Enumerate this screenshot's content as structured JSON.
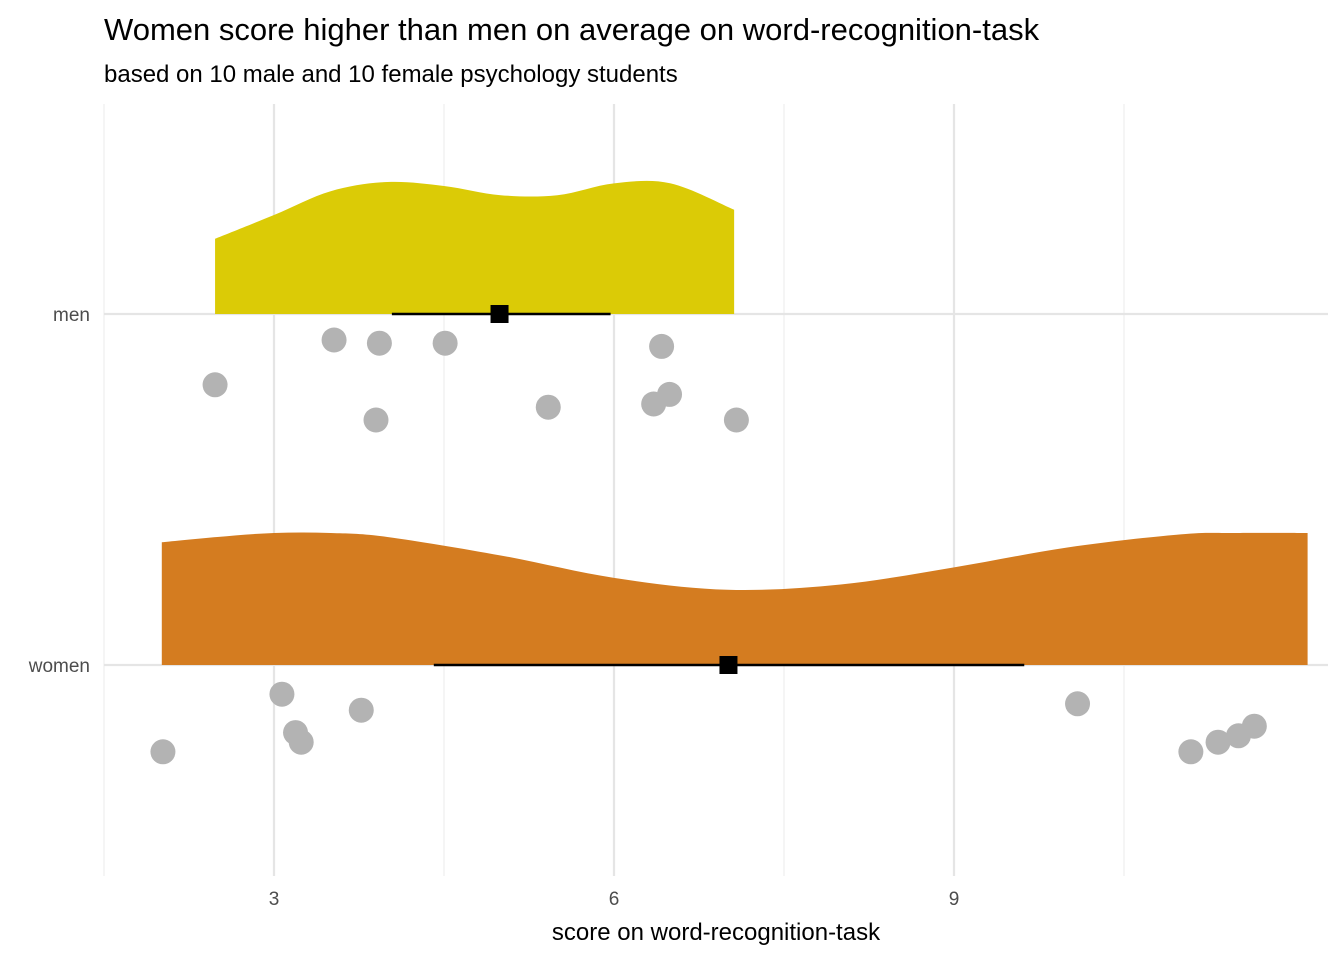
{
  "chart_data": {
    "type": "raincloud",
    "title": "Women score higher than men on average on word-recognition-task",
    "subtitle": "based on 10 male and 10 female psychology students",
    "xlabel": "score on word-recognition-task",
    "ylabel": "",
    "xlim": [
      1.5,
      12.3
    ],
    "x_ticks": [
      3,
      6,
      9
    ],
    "x_tick_labels": [
      "3",
      "6",
      "9"
    ],
    "categories": [
      "men",
      "women"
    ],
    "grid": true,
    "series": [
      {
        "name": "men",
        "color": "#dbcb06",
        "mean": 4.99,
        "interval": [
          4.04,
          5.97
        ],
        "density": {
          "x": [
            2.48,
            3.0,
            3.5,
            4.0,
            4.5,
            5.0,
            5.5,
            6.0,
            6.5,
            7.06
          ],
          "y": [
            0.57,
            0.75,
            0.93,
            1.0,
            0.97,
            0.9,
            0.9,
            0.99,
            0.99,
            0.79
          ]
        },
        "points": [
          {
            "x": 2.48,
            "jitter": 0.19
          },
          {
            "x": 3.53,
            "jitter": 0.05
          },
          {
            "x": 3.9,
            "jitter": 0.3
          },
          {
            "x": 3.93,
            "jitter": 0.06
          },
          {
            "x": 4.51,
            "jitter": 0.06
          },
          {
            "x": 5.42,
            "jitter": 0.26
          },
          {
            "x": 6.35,
            "jitter": 0.25
          },
          {
            "x": 6.42,
            "jitter": 0.07
          },
          {
            "x": 6.49,
            "jitter": 0.22
          },
          {
            "x": 7.08,
            "jitter": 0.3
          }
        ]
      },
      {
        "name": "women",
        "color": "#d47c20",
        "mean": 7.01,
        "interval": [
          4.41,
          9.62
        ],
        "density": {
          "x": [
            2.01,
            2.5,
            3.0,
            3.5,
            4.0,
            5.0,
            6.0,
            7.0,
            8.0,
            9.0,
            10.0,
            11.0,
            11.5,
            12.12
          ],
          "y": [
            0.93,
            0.97,
            1.0,
            1.0,
            0.97,
            0.83,
            0.66,
            0.57,
            0.61,
            0.74,
            0.89,
            0.99,
            1.0,
            1.0
          ]
        },
        "points": [
          {
            "x": 2.02,
            "jitter": 0.24
          },
          {
            "x": 3.07,
            "jitter": 0.06
          },
          {
            "x": 3.19,
            "jitter": 0.18
          },
          {
            "x": 3.24,
            "jitter": 0.21
          },
          {
            "x": 3.77,
            "jitter": 0.11
          },
          {
            "x": 10.09,
            "jitter": 0.09
          },
          {
            "x": 11.09,
            "jitter": 0.24
          },
          {
            "x": 11.33,
            "jitter": 0.21
          },
          {
            "x": 11.51,
            "jitter": 0.19
          },
          {
            "x": 11.65,
            "jitter": 0.16
          }
        ]
      }
    ]
  }
}
